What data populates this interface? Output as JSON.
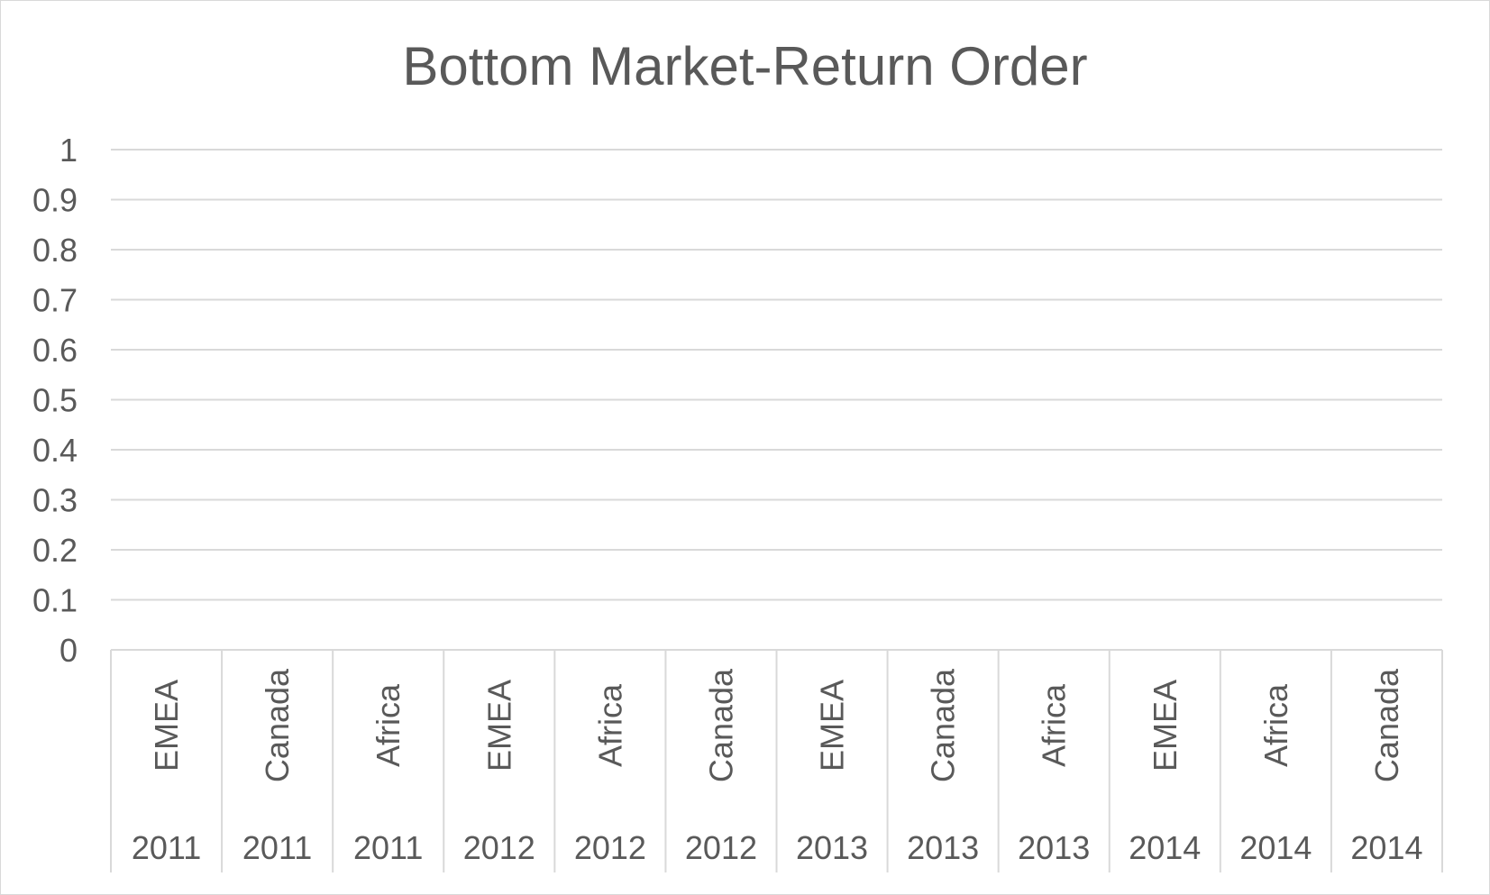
{
  "chart_data": {
    "type": "bar",
    "title": "Bottom Market-Return Order",
    "xlabel": "",
    "ylabel": "",
    "ylim": [
      0,
      1
    ],
    "yticks": [
      "0",
      "0.1",
      "0.2",
      "0.3",
      "0.4",
      "0.5",
      "0.6",
      "0.7",
      "0.8",
      "0.9",
      "1"
    ],
    "grid": true,
    "legend": "none",
    "categories": [
      {
        "market": "EMEA",
        "year": "2011"
      },
      {
        "market": "Canada",
        "year": "2011"
      },
      {
        "market": "Africa",
        "year": "2011"
      },
      {
        "market": "EMEA",
        "year": "2012"
      },
      {
        "market": "Africa",
        "year": "2012"
      },
      {
        "market": "Canada",
        "year": "2012"
      },
      {
        "market": "EMEA",
        "year": "2013"
      },
      {
        "market": "Canada",
        "year": "2013"
      },
      {
        "market": "Africa",
        "year": "2013"
      },
      {
        "market": "EMEA",
        "year": "2014"
      },
      {
        "market": "Africa",
        "year": "2014"
      },
      {
        "market": "Canada",
        "year": "2014"
      }
    ],
    "values": [
      null,
      null,
      null,
      null,
      null,
      null,
      null,
      null,
      null,
      null,
      null,
      null
    ],
    "colors": {
      "text": "#595959",
      "gridline": "#d9d9d9",
      "axis": "#d9d9d9"
    }
  }
}
